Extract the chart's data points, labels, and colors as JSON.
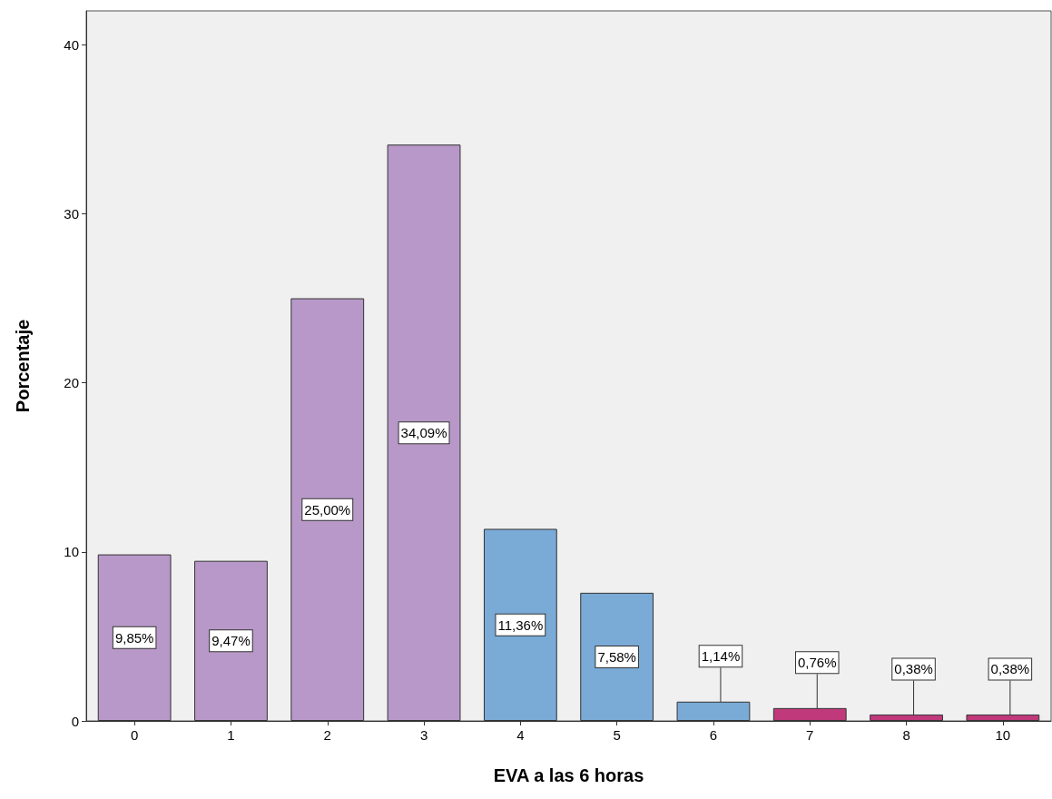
{
  "chart_data": {
    "type": "bar",
    "xlabel": "EVA a las 6 horas",
    "ylabel": "Porcentaje",
    "categories": [
      "0",
      "1",
      "2",
      "3",
      "4",
      "5",
      "6",
      "7",
      "8",
      "10"
    ],
    "values": [
      9.85,
      9.47,
      25.0,
      34.09,
      11.36,
      7.58,
      1.14,
      0.76,
      0.38,
      0.38
    ],
    "colors": [
      "#b898c8",
      "#b898c8",
      "#b898c8",
      "#b898c8",
      "#7aaad6",
      "#7aaad6",
      "#7aaad6",
      "#c0397a",
      "#c0397a",
      "#c0397a"
    ],
    "value_labels": [
      "9,85%",
      "9,47%",
      "25,00%",
      "34,09%",
      "11,36%",
      "7,58%",
      "1,14%",
      "0,76%",
      "0,38%",
      "0,38%"
    ],
    "ylim": [
      0,
      42
    ],
    "yticks": [
      0,
      10,
      20,
      30,
      40
    ],
    "grid": false
  }
}
